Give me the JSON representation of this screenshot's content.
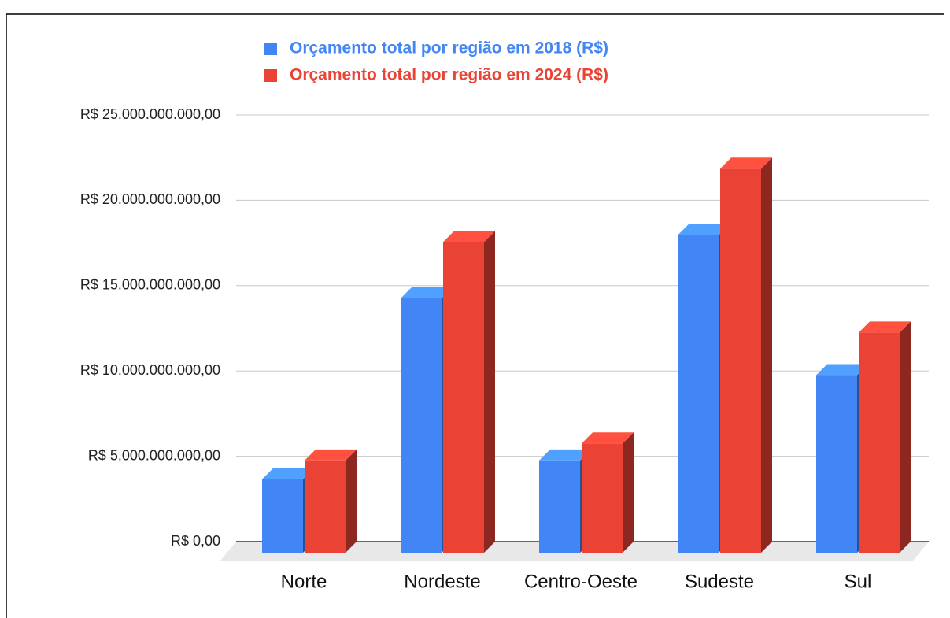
{
  "chart_data": {
    "type": "bar3d",
    "categories": [
      "Norte",
      "Nordeste",
      "Centro-Oeste",
      "Sudeste",
      "Sul"
    ],
    "series": [
      {
        "name": "Orçamento total por região em 2018 (R$)",
        "color": "#4285f4",
        "values": [
          4300000000,
          14900000000,
          5400000000,
          18600000000,
          10400000000
        ]
      },
      {
        "name": "Orçamento total por região em 2024 (R$)",
        "color": "#ea4335",
        "values": [
          5400000000,
          18200000000,
          6400000000,
          22500000000,
          12900000000
        ]
      }
    ],
    "ylim": [
      0,
      25000000000
    ],
    "yticks": [
      {
        "value": 0,
        "label": "R$ 0,00"
      },
      {
        "value": 5000000000,
        "label": "R$ 5.000.000.000,00"
      },
      {
        "value": 10000000000,
        "label": "R$ 10.000.000.000,00"
      },
      {
        "value": 15000000000,
        "label": "R$ 15.000.000.000,00"
      },
      {
        "value": 20000000000,
        "label": "R$ 20.000.000.000,00"
      },
      {
        "value": 25000000000,
        "label": "R$ 25.000.000.000,00"
      }
    ],
    "grid": true,
    "legend": "top"
  }
}
